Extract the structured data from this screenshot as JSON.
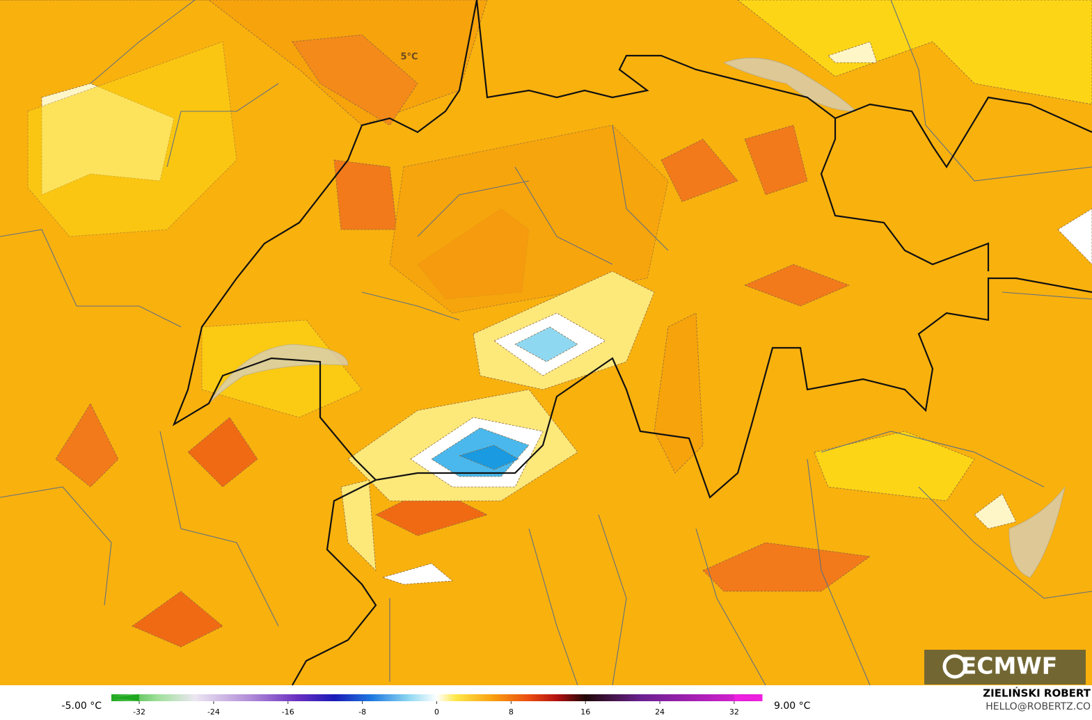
{
  "map": {
    "label": "5°C"
  },
  "colorbar": {
    "min_label": "-5.00 °C",
    "max_label": "9.00 °C",
    "lim": [
      -35,
      35
    ],
    "ticks": [
      -32,
      -24,
      -16,
      -8,
      0,
      8,
      16,
      24,
      32
    ],
    "stops": [
      [
        -35,
        "#1fa81f"
      ],
      [
        -30,
        "#9fe09a"
      ],
      [
        -26,
        "#ece6f2"
      ],
      [
        -20,
        "#b08ad8"
      ],
      [
        -15,
        "#6a2fc0"
      ],
      [
        -11,
        "#1a1ab8"
      ],
      [
        -7,
        "#1f7ae0"
      ],
      [
        -3,
        "#8fd8f2"
      ],
      [
        0,
        "#ffffff"
      ],
      [
        2,
        "#ffe84a"
      ],
      [
        6,
        "#f9a010"
      ],
      [
        10,
        "#ea4a10"
      ],
      [
        13,
        "#b01010"
      ],
      [
        16,
        "#200808"
      ],
      [
        22,
        "#6a2090"
      ],
      [
        35,
        "#f020e0"
      ]
    ]
  },
  "logo": {
    "text": "ECMWF"
  },
  "credit": {
    "name": "ZIELIŃSKI ROBERT",
    "email": "HELLO@ROBERTZ.CO"
  }
}
